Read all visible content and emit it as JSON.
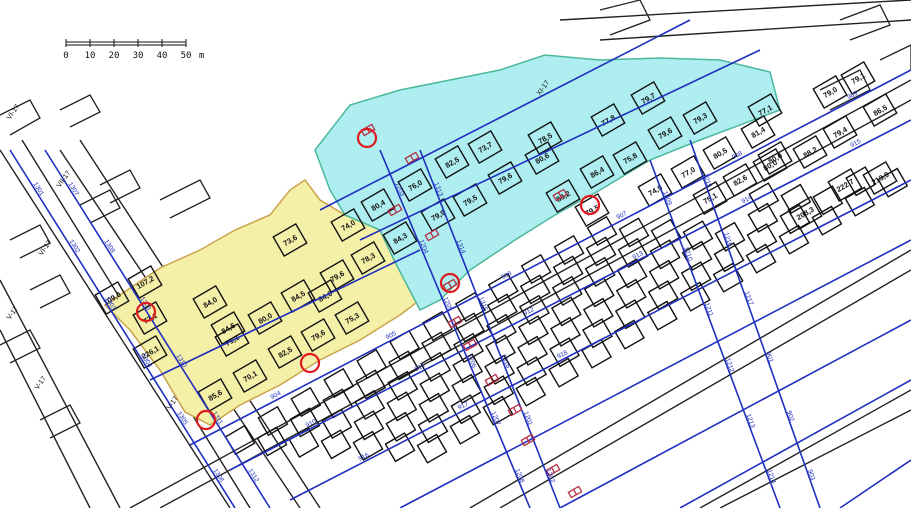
{
  "colors": {
    "zone_yellow": "#f4f0a8",
    "zone_cyan": "#aeeef0",
    "zone_yellow_edge": "#c9a44a",
    "zone_cyan_edge": "#4cb89c",
    "pipe_blue": "#1f2fbf",
    "valve_red": "#b3263a",
    "marker_red": "#e0191f",
    "building_outline": "#111111"
  },
  "scale_bar": {
    "ticks": [
      "0",
      "10",
      "20",
      "30",
      "40",
      "50"
    ],
    "unit": "m"
  },
  "street_labels": [
    "VI-17",
    "VII-17",
    "VI-17",
    "V-17",
    "V-17",
    "V-17",
    "XI-17"
  ],
  "area_labels_yellow": [
    "107,2",
    "109,0",
    "77,1",
    "84,0",
    "80,0",
    "84,5",
    "79,6",
    "84,0",
    "71,1",
    "75,3",
    "84,5",
    "82,5",
    "79,6",
    "70,1",
    "226,1",
    "85,6",
    "73,6"
  ],
  "area_labels_cyan": [
    "74,0",
    "80,4",
    "76,0",
    "82,5",
    "73,7",
    "78,5",
    "77,8",
    "79,7",
    "79,3",
    "77,1",
    "81,4",
    "79,6",
    "79,6",
    "84,3",
    "78,3",
    "79,9",
    "79,5",
    "80,6",
    "83,2",
    "86,4",
    "75,8",
    "74,9",
    "79,5",
    "80,5",
    "77,0"
  ],
  "area_labels_plain": [
    "79,0",
    "79,1",
    "86,5",
    "79,4",
    "88,2",
    "80,0",
    "82,6",
    "75,1",
    "222,7",
    "213,9",
    "208,3",
    "80,0"
  ],
  "pipe_labels": [
    "1301",
    "1302",
    "1303",
    "1304",
    "1305",
    "1306",
    "1307",
    "1308",
    "1309",
    "1310",
    "1311",
    "1312",
    "1313",
    "1314",
    "1315",
    "1316",
    "1201",
    "1202",
    "1203",
    "1204",
    "1205",
    "1206",
    "1207",
    "1208",
    "1209",
    "1210",
    "1211",
    "1212",
    "1213",
    "1214",
    "1215",
    "1216",
    "1217",
    "901",
    "902",
    "903",
    "904",
    "905",
    "906",
    "907",
    "908",
    "909",
    "910",
    "911",
    "912",
    "913",
    "914",
    "915",
    "916",
    "917",
    "918"
  ],
  "markers": [
    "marker-1",
    "marker-2",
    "marker-3",
    "marker-4",
    "marker-5",
    "marker-6"
  ]
}
